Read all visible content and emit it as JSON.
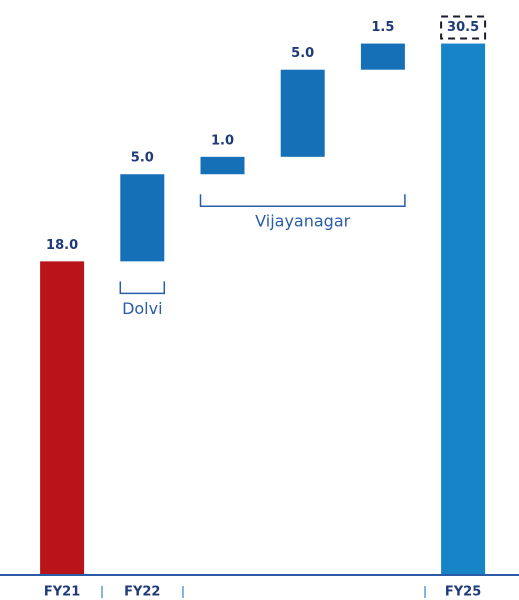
{
  "chart_data": {
    "type": "waterfall",
    "categories": [
      "FY21",
      "FY22",
      null,
      null,
      null,
      "FY25"
    ],
    "values": [
      18,
      5,
      1,
      5,
      1.5,
      30.5
    ],
    "value_labels": [
      "18.0",
      "5.0",
      "1.0",
      "5.0",
      "1.5",
      "30.5"
    ],
    "measure": [
      "absolute",
      "relative",
      "relative",
      "relative",
      "relative",
      "total"
    ],
    "colors": [
      "#b8141a",
      "#1670b8",
      "#1670b8",
      "#1670b8",
      "#1670b8",
      "#1784c8"
    ],
    "annotations": [
      "Dolvi",
      "Vijayanagar"
    ],
    "ylim": [
      0,
      33
    ]
  }
}
